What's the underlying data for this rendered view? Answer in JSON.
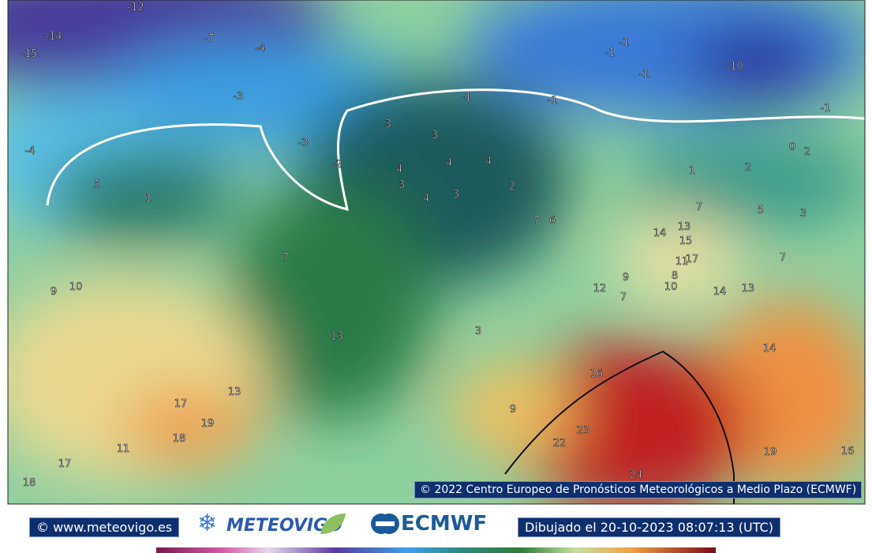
{
  "map": {
    "copyright": "© 2022 Centro Europeo de Pronósticos Meteorológicos a Medio Plazo (ECMWF)",
    "contour_labels": [
      -12,
      -14,
      -15,
      -7,
      -4,
      -3,
      -4,
      -3,
      -2,
      5,
      1,
      3,
      3,
      -1,
      -1,
      -1,
      -1,
      -1,
      -10,
      -1,
      4,
      4,
      4,
      3,
      4,
      3,
      2,
      1,
      2,
      0,
      2,
      7,
      6,
      7,
      5,
      3,
      13,
      14,
      15,
      17,
      11,
      7,
      7,
      9,
      10,
      12,
      9,
      8,
      7,
      10,
      13,
      14,
      13,
      3,
      14,
      16,
      13,
      17,
      19,
      18,
      9,
      11,
      17,
      18,
      22,
      23,
      24,
      19,
      16
    ]
  },
  "footer": {
    "website": "© www.meteovigo.es",
    "brand": "METEOVIGO",
    "ecmwf": "ECMWF",
    "drawn": "Dibujado el 20-10-2023 08:07:13 (UTC)"
  }
}
